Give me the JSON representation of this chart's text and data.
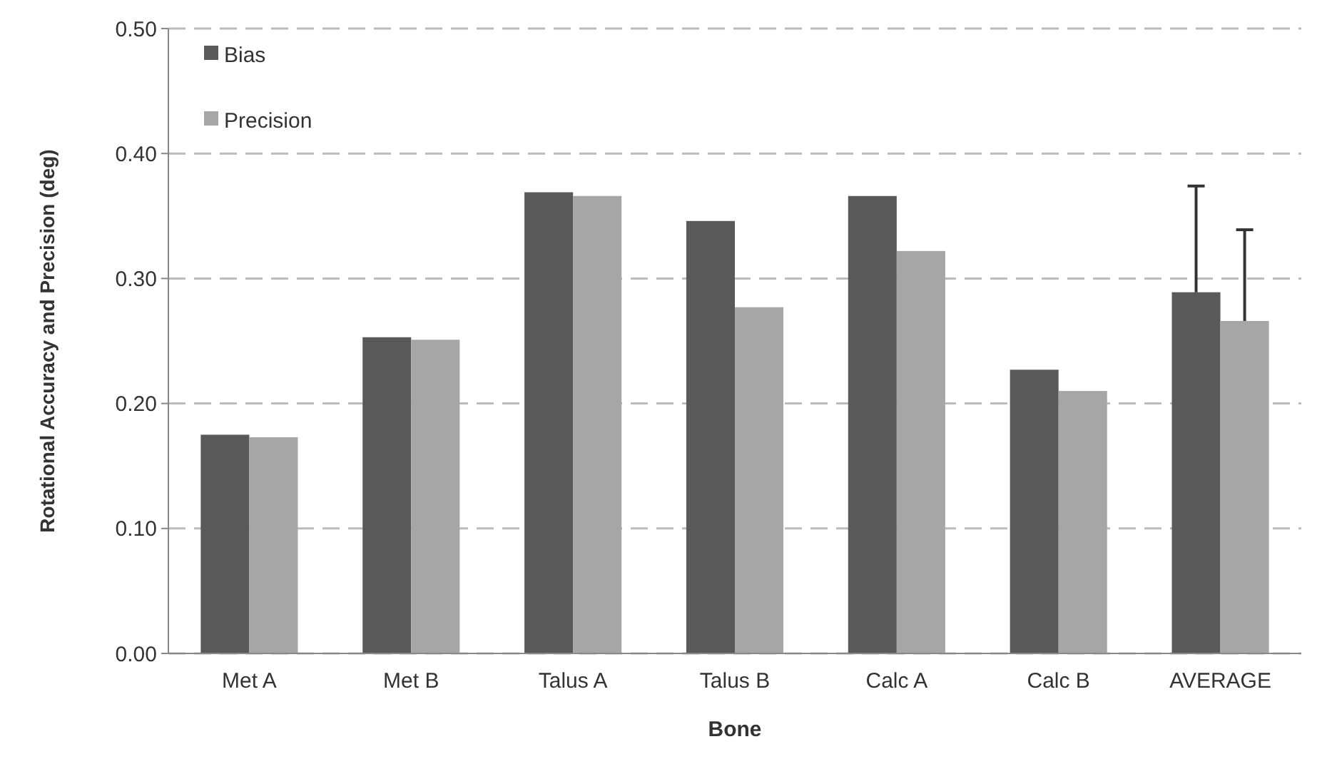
{
  "chart_data": {
    "type": "bar",
    "xlabel": "Bone",
    "ylabel": "Rotational Accuracy and Precision (deg)",
    "categories": [
      "Met A",
      "Met B",
      "Talus A",
      "Talus B",
      "Calc A",
      "Calc B",
      "AVERAGE"
    ],
    "series": [
      {
        "name": "Bias",
        "color": "#595959",
        "values": [
          0.175,
          0.253,
          0.369,
          0.346,
          0.366,
          0.227,
          0.289
        ],
        "errors": [
          null,
          null,
          null,
          null,
          null,
          null,
          [
            0.289,
            0.374
          ]
        ]
      },
      {
        "name": "Precision",
        "color": "#a6a6a6",
        "values": [
          0.173,
          0.251,
          0.366,
          0.277,
          0.322,
          0.21,
          0.266
        ],
        "errors": [
          null,
          null,
          null,
          null,
          null,
          null,
          [
            0.266,
            0.339
          ]
        ]
      }
    ],
    "ylim": [
      0,
      0.5
    ],
    "yticks": [
      {
        "value": 0,
        "label": "0.00"
      },
      {
        "value": 0.1,
        "label": "0.10"
      },
      {
        "value": 0.2,
        "label": "0.20"
      },
      {
        "value": 0.3,
        "label": "0.30"
      },
      {
        "value": 0.4,
        "label": "0.40"
      },
      {
        "value": 0.5,
        "label": "0.50"
      }
    ],
    "grid": "y",
    "line_style": "dashed",
    "legend": "top left"
  }
}
